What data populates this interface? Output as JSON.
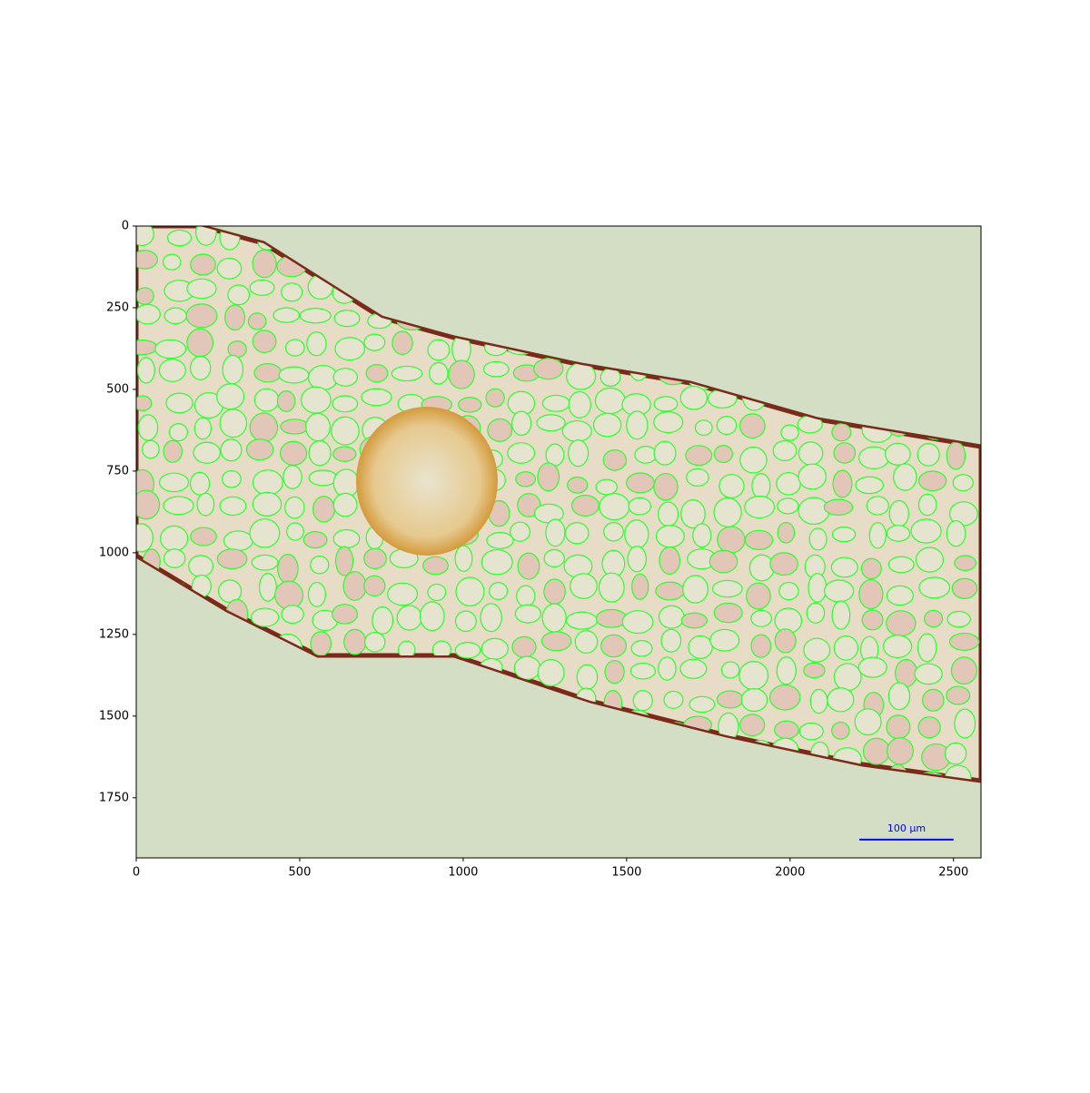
{
  "chart_data": {
    "type": "image",
    "xlim": [
      0,
      2584
    ],
    "ylim": [
      1934,
      0
    ],
    "xticks": [
      0,
      500,
      1000,
      1500,
      2000,
      2500
    ],
    "yticks": [
      0,
      250,
      500,
      750,
      1000,
      1250,
      1500,
      1750
    ],
    "scale_bar": {
      "label": "100 μm",
      "x": [
        2212,
        2500
      ],
      "y": 1878,
      "color": "#0000ff"
    }
  }
}
